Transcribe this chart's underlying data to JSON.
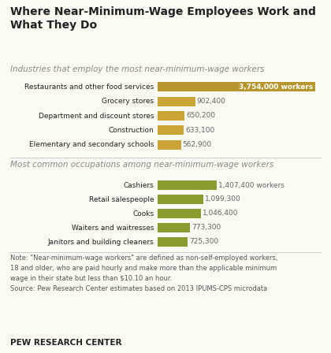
{
  "title": "Where Near-Minimum-Wage Employees Work and\nWhat They Do",
  "subtitle1": "Industries that employ the most near-minimum-wage workers",
  "subtitle2": "Most common occupations among near-minimum-wage workers",
  "industries": {
    "labels": [
      "Elementary and secondary schools",
      "Construction",
      "Department and discount stores",
      "Grocery stores",
      "Restaurants and other food services"
    ],
    "values": [
      562900,
      633100,
      650200,
      902400,
      3754000
    ],
    "labels_display": [
      "562,900",
      "633,100",
      "650,200",
      "902,400",
      "3,754,000 workers"
    ],
    "color": "#C9A535",
    "top_color": "#B8962E"
  },
  "occupations": {
    "labels": [
      "Janitors and building cleaners",
      "Waiters and waitresses",
      "Cooks",
      "Retail salespeople",
      "Cashiers"
    ],
    "values": [
      725300,
      773300,
      1046400,
      1099300,
      1407400
    ],
    "labels_display": [
      "725,300",
      "773,300",
      "1,046,400",
      "1,099,300",
      "1,407,400 workers"
    ],
    "color": "#8B9B30"
  },
  "note1": "Note: \"Near-minimum-wage workers\" are defined as non-self-employed workers,",
  "note2": "18 and older, who are paid hourly and make more than the applicable minimum",
  "note3": "wage in their state but less than $10.10 an hour.",
  "note4": "Source: Pew Research Center estimates based on 2013 IPUMS-CPS microdata",
  "footer": "PEW RESEARCH CENTER",
  "bg_color": "#FAFAF2",
  "text_color": "#222222",
  "label_color": "#666666",
  "subtitle_color": "#888888"
}
